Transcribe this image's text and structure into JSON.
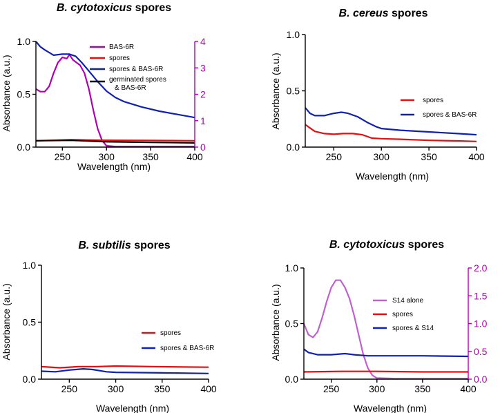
{
  "chart_data": [
    {
      "type": "line",
      "title_italic": "B. cytotoxicus",
      "title_rest": " spores",
      "xlabel": "Wavelength (nm)",
      "ylabel": "Absorbance (a.u.)",
      "xlim": [
        220,
        400
      ],
      "ylim": [
        0,
        1.0
      ],
      "xticks": [
        250,
        300,
        350,
        400
      ],
      "yticks": [
        0.0,
        0.5,
        1.0
      ],
      "yright": {
        "lim": [
          0,
          4
        ],
        "ticks": [
          0,
          1,
          2,
          3,
          4
        ],
        "color": "#b000b0"
      },
      "series": [
        {
          "name": "BAS-6R",
          "color": "#b000b0",
          "axis": "right",
          "points": [
            [
              220,
              2.2
            ],
            [
              225,
              2.1
            ],
            [
              230,
              2.1
            ],
            [
              235,
              2.3
            ],
            [
              240,
              2.8
            ],
            [
              245,
              3.2
            ],
            [
              250,
              3.4
            ],
            [
              255,
              3.35
            ],
            [
              258,
              3.5
            ],
            [
              262,
              3.3
            ],
            [
              270,
              3.1
            ],
            [
              275,
              2.8
            ],
            [
              280,
              2.2
            ],
            [
              285,
              1.4
            ],
            [
              290,
              0.7
            ],
            [
              295,
              0.25
            ],
            [
              300,
              0.05
            ],
            [
              310,
              0.02
            ],
            [
              400,
              0.02
            ]
          ]
        },
        {
          "name": "spores",
          "color": "#e01010",
          "axis": "left",
          "points": [
            [
              220,
              0.06
            ],
            [
              260,
              0.07
            ],
            [
              300,
              0.065
            ],
            [
              350,
              0.063
            ],
            [
              400,
              0.06
            ]
          ]
        },
        {
          "name": "spores & BAS-6R",
          "color": "#1020b0",
          "axis": "left",
          "points": [
            [
              220,
              1.0
            ],
            [
              225,
              0.95
            ],
            [
              230,
              0.92
            ],
            [
              240,
              0.87
            ],
            [
              250,
              0.88
            ],
            [
              258,
              0.88
            ],
            [
              265,
              0.86
            ],
            [
              272,
              0.8
            ],
            [
              280,
              0.72
            ],
            [
              290,
              0.62
            ],
            [
              300,
              0.53
            ],
            [
              310,
              0.47
            ],
            [
              320,
              0.43
            ],
            [
              340,
              0.38
            ],
            [
              360,
              0.34
            ],
            [
              380,
              0.31
            ],
            [
              400,
              0.28
            ]
          ]
        },
        {
          "name": "germinated spores & BAS-6R",
          "name_line1": "germinated spores",
          "name_line2": "& BAS-6R",
          "color": "#000000",
          "axis": "left",
          "points": [
            [
              220,
              0.06
            ],
            [
              260,
              0.065
            ],
            [
              300,
              0.05
            ],
            [
              350,
              0.045
            ],
            [
              400,
              0.04
            ]
          ]
        }
      ]
    },
    {
      "type": "line",
      "title_italic": "B. cereus",
      "title_rest": " spores",
      "xlabel": "Wavelength (nm)",
      "ylabel": "Absorbance (a.u.)",
      "xlim": [
        220,
        400
      ],
      "ylim": [
        0,
        1.0
      ],
      "xticks": [
        250,
        300,
        350,
        400
      ],
      "yticks": [
        0.0,
        0.5,
        1.0
      ],
      "series": [
        {
          "name": "spores",
          "color": "#e01010",
          "points": [
            [
              220,
              0.2
            ],
            [
              225,
              0.17
            ],
            [
              230,
              0.14
            ],
            [
              240,
              0.12
            ],
            [
              250,
              0.115
            ],
            [
              260,
              0.12
            ],
            [
              270,
              0.12
            ],
            [
              280,
              0.11
            ],
            [
              290,
              0.08
            ],
            [
              300,
              0.075
            ],
            [
              320,
              0.07
            ],
            [
              350,
              0.06
            ],
            [
              380,
              0.055
            ],
            [
              400,
              0.05
            ]
          ]
        },
        {
          "name": "spores & BAS-6R",
          "color": "#1020b0",
          "points": [
            [
              220,
              0.35
            ],
            [
              225,
              0.3
            ],
            [
              230,
              0.28
            ],
            [
              240,
              0.28
            ],
            [
              250,
              0.3
            ],
            [
              258,
              0.31
            ],
            [
              265,
              0.3
            ],
            [
              275,
              0.27
            ],
            [
              285,
              0.22
            ],
            [
              295,
              0.18
            ],
            [
              300,
              0.165
            ],
            [
              320,
              0.15
            ],
            [
              350,
              0.135
            ],
            [
              380,
              0.12
            ],
            [
              400,
              0.11
            ]
          ]
        }
      ]
    },
    {
      "type": "line",
      "title_italic": "B. subtilis",
      "title_rest": " spores",
      "xlabel": "Wavelength (nm)",
      "ylabel": "Absorbance (a.u.)",
      "xlim": [
        220,
        400
      ],
      "ylim": [
        0,
        1.0
      ],
      "xticks": [
        250,
        300,
        350,
        400
      ],
      "yticks": [
        0.0,
        0.5,
        1.0
      ],
      "series": [
        {
          "name": "spores",
          "color": "#e01010",
          "points": [
            [
              220,
              0.11
            ],
            [
              240,
              0.1
            ],
            [
              260,
              0.11
            ],
            [
              280,
              0.11
            ],
            [
              300,
              0.115
            ],
            [
              340,
              0.11
            ],
            [
              400,
              0.105
            ]
          ]
        },
        {
          "name": "spores & BAS-6R",
          "color": "#1020b0",
          "points": [
            [
              220,
              0.07
            ],
            [
              235,
              0.065
            ],
            [
              250,
              0.08
            ],
            [
              265,
              0.09
            ],
            [
              275,
              0.085
            ],
            [
              290,
              0.065
            ],
            [
              300,
              0.06
            ],
            [
              350,
              0.055
            ],
            [
              400,
              0.05
            ]
          ]
        }
      ]
    },
    {
      "type": "line",
      "title_italic": "B. cytotoxicus",
      "title_rest": " spores",
      "xlabel": "Wavelength (nm)",
      "ylabel": "Absorbance (a.u.)",
      "xlim": [
        220,
        400
      ],
      "ylim": [
        0,
        1.0
      ],
      "xticks": [
        250,
        300,
        350,
        400
      ],
      "yticks": [
        0.0,
        0.5,
        1.0
      ],
      "yright": {
        "lim": [
          0,
          2.0
        ],
        "ticks": [
          0.0,
          0.5,
          1.0,
          1.5,
          2.0
        ],
        "color": "#b000b0"
      },
      "series": [
        {
          "name": "S14 alone",
          "color": "#c060d0",
          "axis": "right",
          "points": [
            [
              220,
              1.0
            ],
            [
              225,
              0.8
            ],
            [
              230,
              0.75
            ],
            [
              235,
              0.85
            ],
            [
              240,
              1.1
            ],
            [
              245,
              1.4
            ],
            [
              250,
              1.65
            ],
            [
              255,
              1.78
            ],
            [
              260,
              1.78
            ],
            [
              265,
              1.65
            ],
            [
              270,
              1.45
            ],
            [
              275,
              1.15
            ],
            [
              280,
              0.8
            ],
            [
              285,
              0.45
            ],
            [
              290,
              0.2
            ],
            [
              295,
              0.07
            ],
            [
              300,
              0.02
            ],
            [
              320,
              0.01
            ],
            [
              400,
              0.01
            ]
          ]
        },
        {
          "name": "spores",
          "color": "#e01010",
          "axis": "left",
          "points": [
            [
              220,
              0.065
            ],
            [
              260,
              0.07
            ],
            [
              300,
              0.07
            ],
            [
              350,
              0.065
            ],
            [
              400,
              0.065
            ]
          ]
        },
        {
          "name": "spores & S14",
          "color": "#1020b0",
          "axis": "left",
          "points": [
            [
              220,
              0.27
            ],
            [
              225,
              0.24
            ],
            [
              235,
              0.22
            ],
            [
              250,
              0.22
            ],
            [
              265,
              0.23
            ],
            [
              275,
              0.22
            ],
            [
              290,
              0.21
            ],
            [
              350,
              0.21
            ],
            [
              400,
              0.205
            ]
          ]
        }
      ]
    }
  ]
}
